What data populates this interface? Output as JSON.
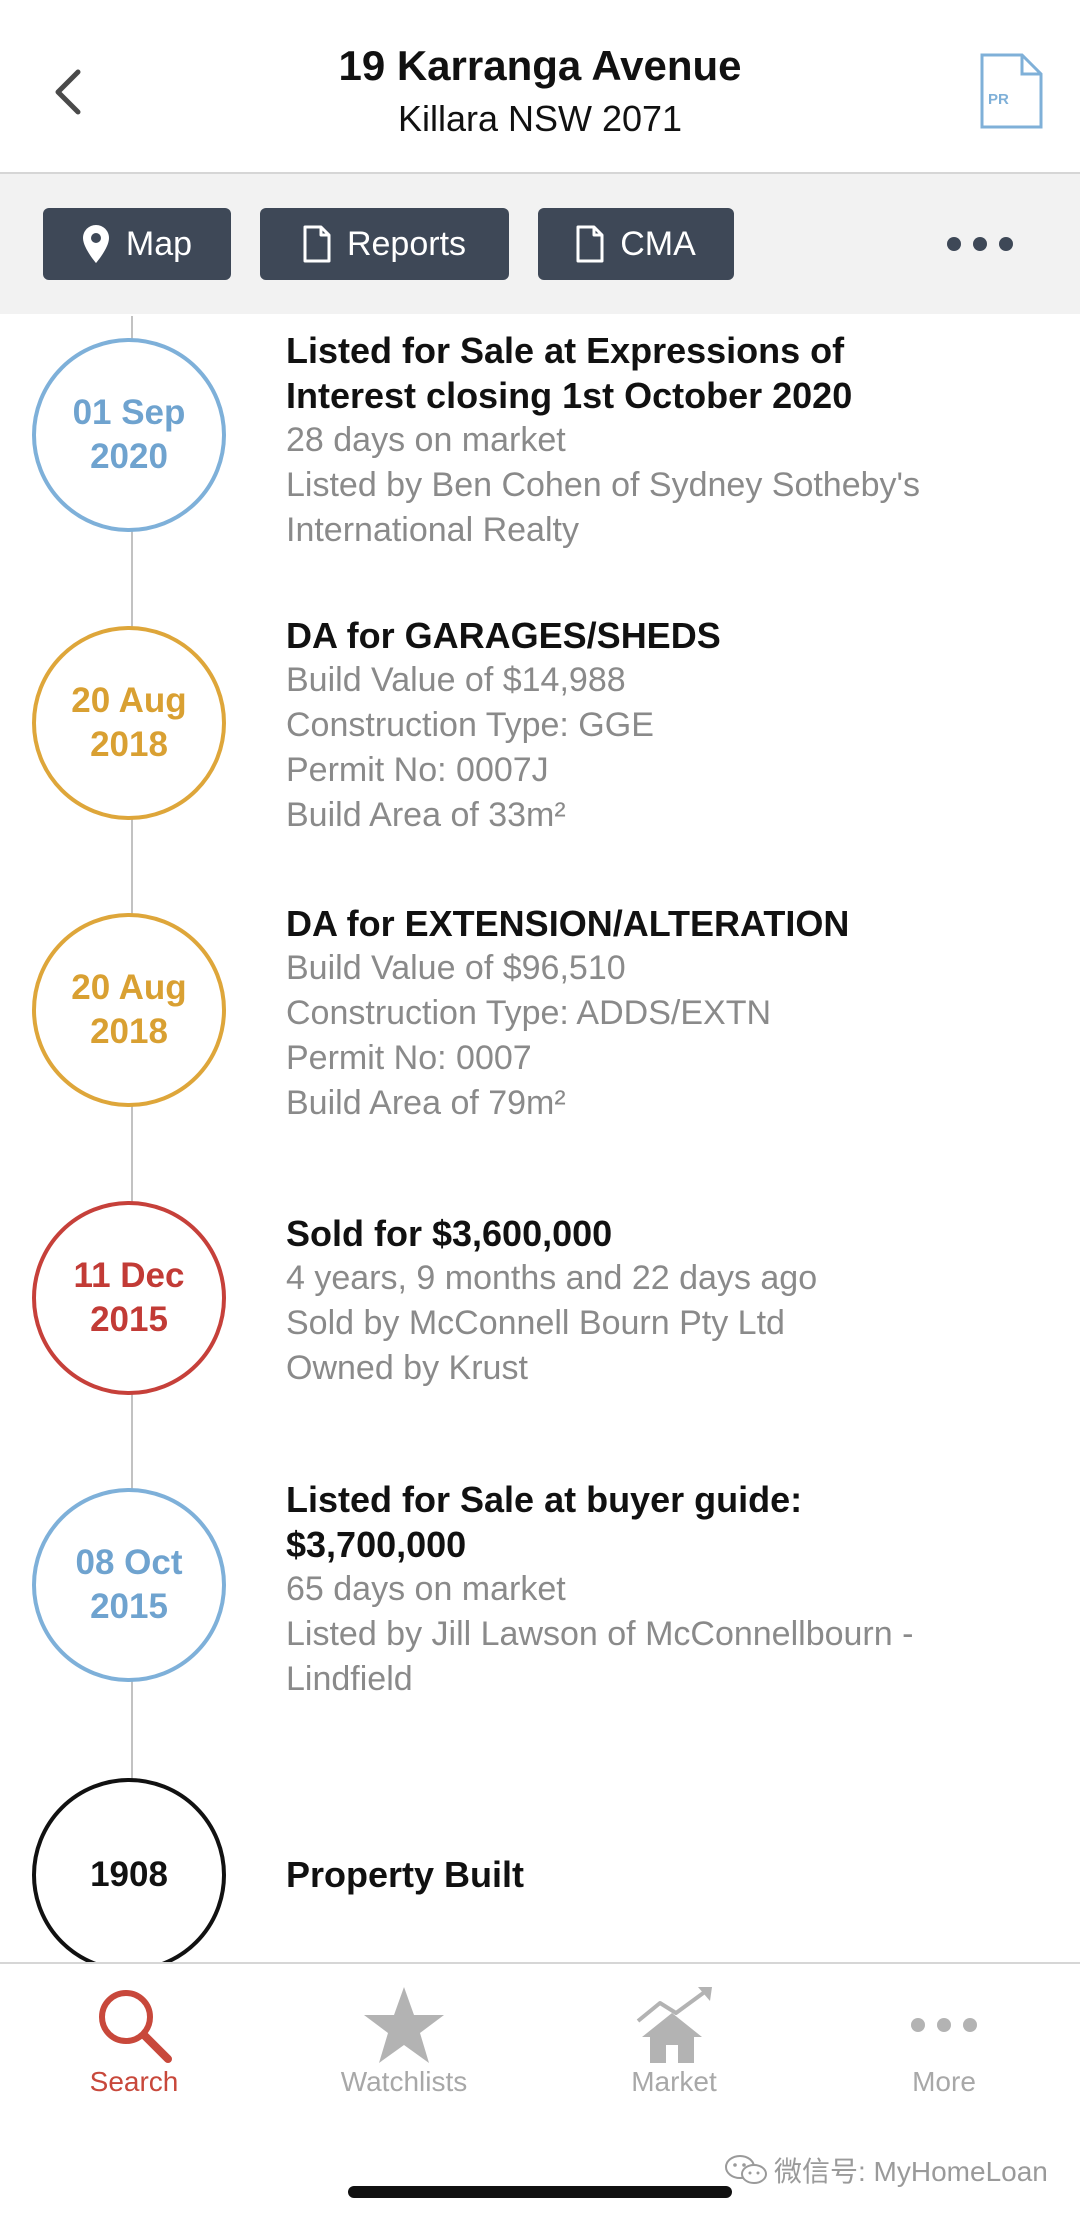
{
  "header": {
    "title": "19 Karranga Avenue",
    "subtitle": "Killara NSW 2071",
    "pr_icon_label": "PR"
  },
  "toolbar": {
    "map_label": "Map",
    "reports_label": "Reports",
    "cma_label": "CMA"
  },
  "timeline": [
    {
      "date_line1": "01 Sep",
      "date_line2": "2020",
      "color": "#7eb0d9",
      "title_lines": [
        "Listed for Sale at Expressions of",
        "Interest closing 1st October 2020"
      ],
      "details": [
        "28 days on market",
        "Listed by Ben Cohen of Sydney Sotheby's",
        "International Realty"
      ]
    },
    {
      "date_line1": "20 Aug",
      "date_line2": "2018",
      "color": "#dea63a",
      "title_lines": [
        "DA for GARAGES/SHEDS"
      ],
      "details": [
        "Build Value of $14,988",
        "Construction Type: GGE",
        "Permit No: 0007J",
        "Build Area of 33m²"
      ]
    },
    {
      "date_line1": "20 Aug",
      "date_line2": "2018",
      "color": "#dea63a",
      "title_lines": [
        "DA for EXTENSION/ALTERATION"
      ],
      "details": [
        "Build Value of $96,510",
        "Construction Type: ADDS/EXTN",
        "Permit No: 0007",
        "Build Area of 79m²"
      ]
    },
    {
      "date_line1": "11 Dec",
      "date_line2": "2015",
      "color": "#c6403a",
      "title_lines": [
        "Sold for $3,600,000"
      ],
      "details": [
        "4 years, 9 months and 22 days ago",
        "Sold by McConnell Bourn Pty Ltd",
        "Owned by Krust"
      ]
    },
    {
      "date_line1": "08 Oct",
      "date_line2": "2015",
      "color": "#7eb0d9",
      "title_lines": [
        "Listed for Sale at buyer guide:",
        "$3,700,000"
      ],
      "details": [
        "65 days on market",
        "Listed by Jill Lawson of McConnellbourn -",
        "Lindfield"
      ]
    },
    {
      "date_line1": "1908",
      "date_line2": "",
      "color": "#111111",
      "title_lines": [
        "Property Built"
      ],
      "details": []
    }
  ],
  "tabbar": {
    "search_label": "Search",
    "watchlists_label": "Watchlists",
    "market_label": "Market",
    "more_label": "More",
    "active": "search",
    "active_color": "#c8483b"
  },
  "watermark": {
    "text": "微信号: MyHomeLoan"
  }
}
